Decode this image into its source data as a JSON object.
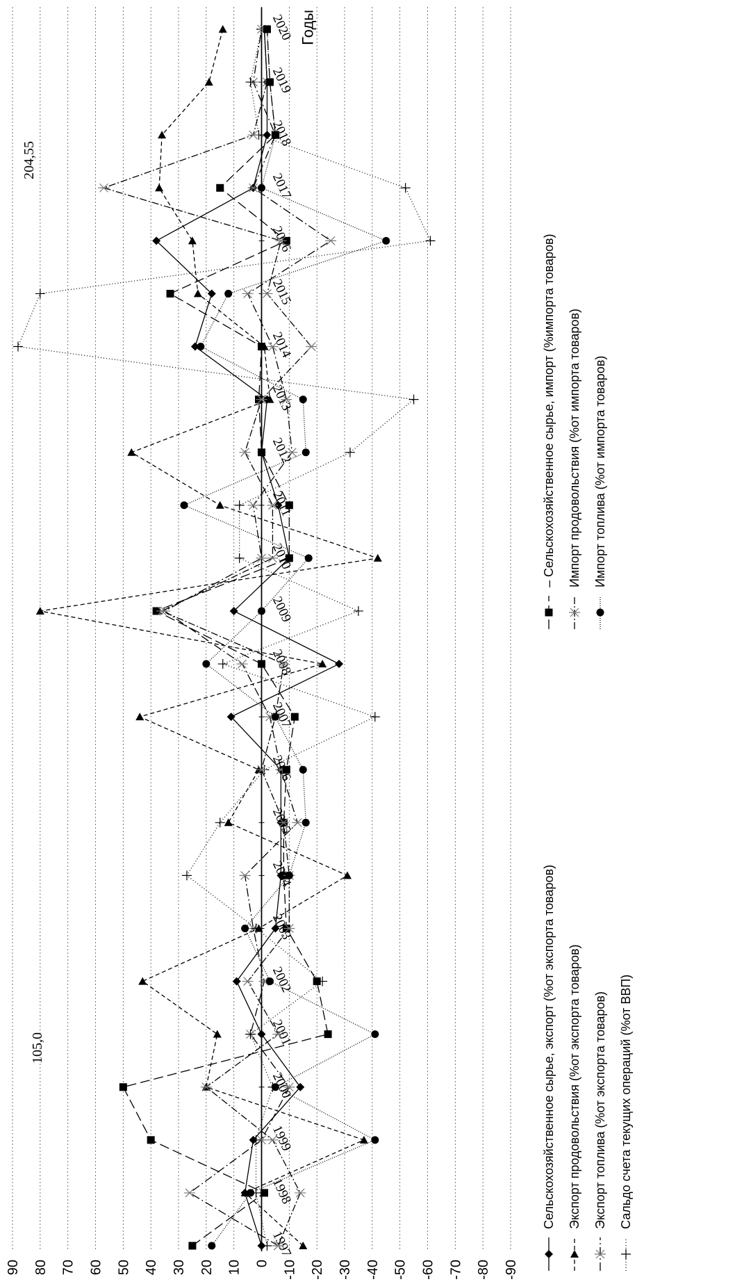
{
  "chart_data": {
    "type": "line",
    "title": "",
    "xlabel": "Годы",
    "ylabel": "",
    "ylim": [
      -90,
      90
    ],
    "yticks": [
      90,
      80,
      70,
      60,
      50,
      40,
      30,
      20,
      10,
      0,
      -10,
      -20,
      -30,
      -40,
      -50,
      -60,
      -70,
      -80,
      -90
    ],
    "grid": true,
    "legend_position": "bottom",
    "x": [
      "1997",
      "1998",
      "1999",
      "2000",
      "2001",
      "2002",
      "2003",
      "2004",
      "2005",
      "2006",
      "2007",
      "2008",
      "2009",
      "2010",
      "2011",
      "2012",
      "2013",
      "2014",
      "2015",
      "2016",
      "2017",
      "2018",
      "2019",
      "2020"
    ],
    "annotations": [
      "105,0",
      "204,55"
    ],
    "series": [
      {
        "name": "Сельскохозяйственное сырье, экспорт (%от экспорта товаров)",
        "color": "#000000",
        "dash": "",
        "marker": "diamond",
        "values": [
          0,
          6,
          3,
          -14,
          0,
          9,
          -5,
          -7,
          -7,
          -7,
          11,
          -28,
          10,
          -10,
          -6,
          0,
          -2,
          24,
          18,
          38,
          3,
          -2,
          -2,
          -1
        ]
      },
      {
        "name": "Экспорт продовольствия (%от экспорта товаров)",
        "color": "#000000",
        "dash": "6,4",
        "marker": "triangle",
        "values": [
          -15,
          6,
          -37,
          20,
          16,
          43,
          1,
          -31,
          12,
          1,
          44,
          -22,
          80,
          -42,
          15,
          47,
          -3,
          -1,
          23,
          25,
          37,
          36,
          19,
          14
        ]
      },
      {
        "name": "Экспорт топлива (%от экспорта товаров)",
        "color": "#000000",
        "dash": "12,4,2,4",
        "marker": "star",
        "values": [
          -6,
          26,
          0,
          -10,
          4,
          -1,
          3,
          6,
          -13,
          -7,
          -3,
          7,
          35,
          0,
          3,
          -11,
          -9,
          -4,
          5,
          -25,
          3,
          -5,
          3,
          0
        ]
      },
      {
        "name": "Сальдо счета текущих операций (%от ВВП)",
        "color": "#000000",
        "dash": "1,3",
        "marker": "plus",
        "values": [
          -2,
          2,
          2,
          -4,
          4,
          -22,
          2,
          27,
          15,
          -1,
          -41,
          14,
          -35,
          8,
          8,
          -32,
          -55,
          88,
          80,
          -61,
          -52,
          1,
          4,
          0
        ]
      },
      {
        "name": "– Сельскохозяйственное сырье, импорт (%импорта товаров)",
        "color": "#000000",
        "dash": "14,6",
        "marker": "square",
        "values": [
          25,
          -1,
          40,
          50,
          -24,
          -20,
          -9,
          -8,
          -8,
          -9,
          -12,
          0,
          38,
          -10,
          -10,
          0,
          1,
          0,
          33,
          -9,
          15,
          -5,
          -3,
          -2
        ]
      },
      {
        "name": "Импорт продовольствия (%от импорта товаров)",
        "color": "#000000",
        "dash": "10,3,2,3",
        "marker": "star",
        "values": [
          -6,
          -14,
          -4,
          20,
          -6,
          5,
          -10,
          -10,
          -8,
          0,
          -5,
          -8,
          36,
          -4,
          -4,
          6,
          0,
          -18,
          -2,
          -7,
          57,
          3,
          -2,
          -1
        ]
      },
      {
        "name": "Импорт топлива (%от импорта товаров)",
        "color": "#000000",
        "dash": "1,2",
        "marker": "circle",
        "values": [
          18,
          4,
          -41,
          -5,
          -41,
          -3,
          6,
          -10,
          -16,
          -15,
          -5,
          20,
          0,
          -17,
          28,
          -16,
          -15,
          22,
          12,
          -45,
          0,
          -5,
          -3,
          -2
        ]
      }
    ]
  }
}
